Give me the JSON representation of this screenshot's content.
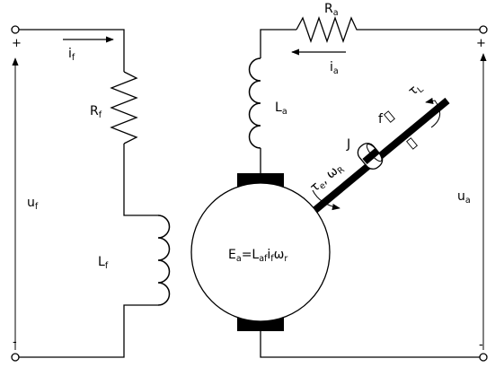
{
  "terminals": {
    "field_plus": "+",
    "field_minus": "-",
    "armature_plus": "+",
    "armature_minus": "-"
  },
  "labels": {
    "field_current": {
      "main": "i",
      "sub": "f"
    },
    "field_resistance": {
      "main": "R",
      "sub": "f"
    },
    "field_voltage": {
      "main": "u",
      "sub": "f"
    },
    "field_inductance": {
      "main": "L",
      "sub": "f"
    },
    "armature_resistance": {
      "main": "R",
      "sub": "a"
    },
    "armature_current": {
      "main": "i",
      "sub": "a"
    },
    "armature_inductance": {
      "main": "L",
      "sub": "a"
    },
    "armature_voltage": {
      "main": "u",
      "sub": "a"
    },
    "load_torque": {
      "main": "τ",
      "sub": "L"
    },
    "friction": "f",
    "inertia": "J",
    "electric_torque": {
      "tau": "τ",
      "tau_sub": "e",
      "sep": ", ",
      "omega": "ω",
      "omega_sub": "R"
    },
    "back_emf": {
      "e": "E",
      "e_sub": "a",
      "eq": "=",
      "l": "L",
      "l_sub": "af",
      "i": "i",
      "i_sub": "f",
      "w": "ω",
      "w_sub": "r"
    }
  }
}
